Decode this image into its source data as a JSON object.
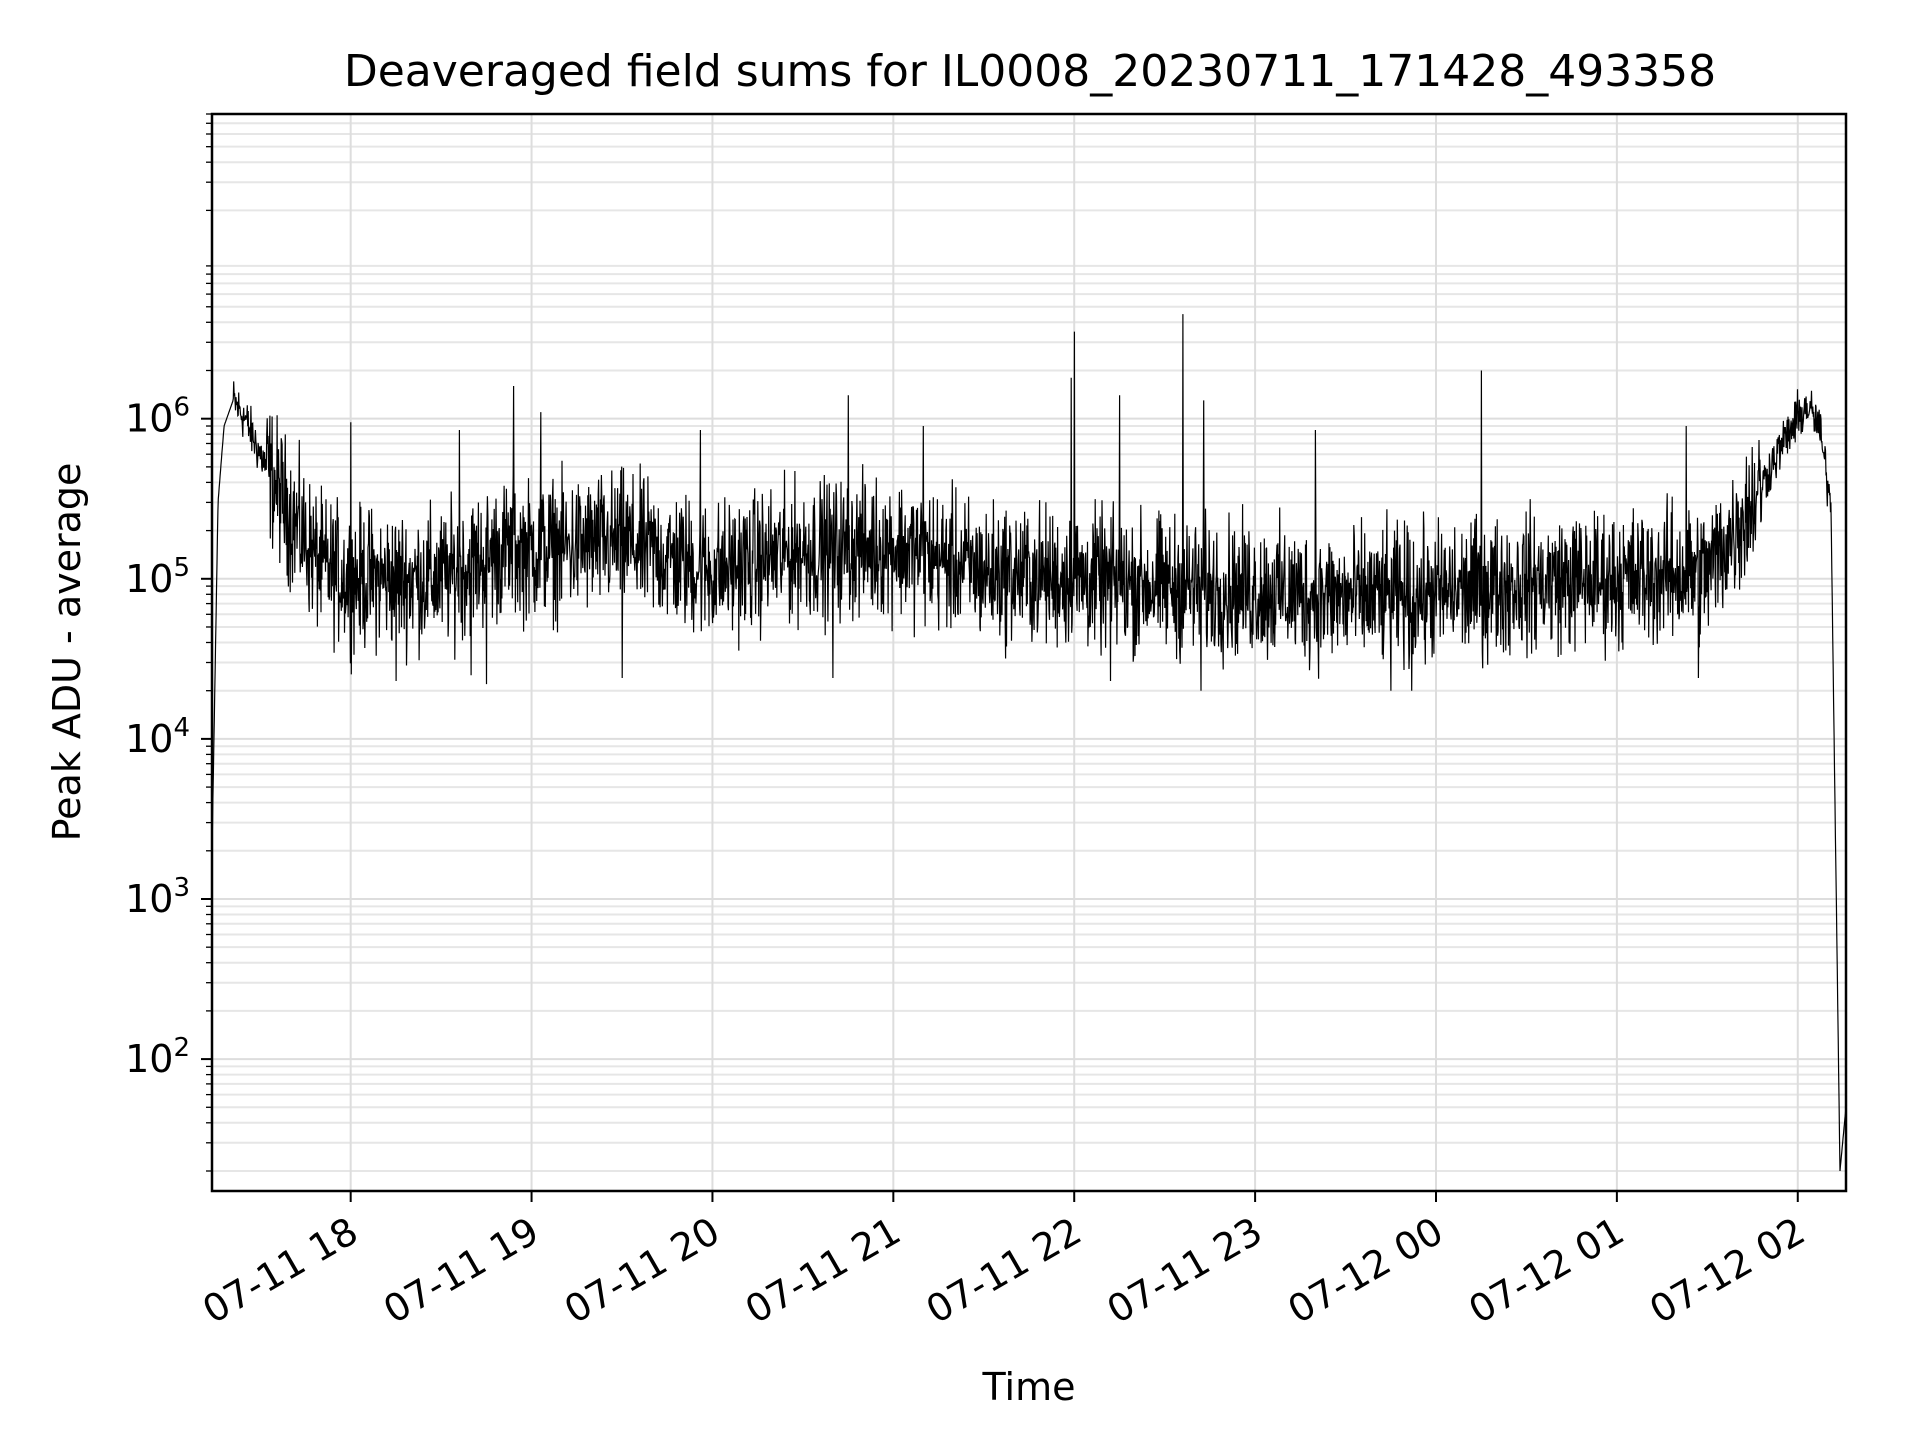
{
  "chart_data": {
    "type": "line",
    "title": "Deaveraged field sums for IL0008_20230711_171428_493358",
    "xlabel": "Time",
    "ylabel": "Peak ADU - average",
    "yscale": "log",
    "ylim": [
      15,
      80000000
    ],
    "xlim": [
      "2023-07-11 17:14",
      "2023-07-12 02:16"
    ],
    "x_ticks": [
      {
        "t": "2023-07-11 18:00",
        "label": "07-11 18"
      },
      {
        "t": "2023-07-11 19:00",
        "label": "07-11 19"
      },
      {
        "t": "2023-07-11 20:00",
        "label": "07-11 20"
      },
      {
        "t": "2023-07-11 21:00",
        "label": "07-11 21"
      },
      {
        "t": "2023-07-11 22:00",
        "label": "07-11 22"
      },
      {
        "t": "2023-07-11 23:00",
        "label": "07-11 23"
      },
      {
        "t": "2023-07-12 00:00",
        "label": "07-12 00"
      },
      {
        "t": "2023-07-12 01:00",
        "label": "07-12 01"
      },
      {
        "t": "2023-07-12 02:00",
        "label": "07-12 02"
      }
    ],
    "y_ticks": [
      {
        "value": 100,
        "base": "10",
        "exp": "2"
      },
      {
        "value": 1000,
        "base": "10",
        "exp": "3"
      },
      {
        "value": 10000,
        "base": "10",
        "exp": "4"
      },
      {
        "value": 100000,
        "base": "10",
        "exp": "5"
      },
      {
        "value": 1000000,
        "base": "10",
        "exp": "6"
      }
    ],
    "grid": "on",
    "series": [
      {
        "color": "#000000",
        "x": [
          "2023-07-11 17:14",
          "2023-07-11 17:16",
          "2023-07-11 17:18",
          "2023-07-11 17:21",
          "2023-07-11 17:25",
          "2023-07-11 17:30",
          "2023-07-11 17:40",
          "2023-07-11 17:50",
          "2023-07-11 18:00",
          "2023-07-11 18:30",
          "2023-07-11 18:50",
          "2023-07-11 19:00",
          "2023-07-11 19:30",
          "2023-07-11 20:00",
          "2023-07-11 20:30",
          "2023-07-11 21:00",
          "2023-07-11 21:30",
          "2023-07-11 22:00",
          "2023-07-11 22:30",
          "2023-07-11 23:00",
          "2023-07-11 23:30",
          "2023-07-12 00:00",
          "2023-07-12 00:30",
          "2023-07-12 01:00",
          "2023-07-12 01:30",
          "2023-07-12 01:45",
          "2023-07-12 01:55",
          "2023-07-12 02:00",
          "2023-07-12 02:03",
          "2023-07-12 02:07",
          "2023-07-12 02:11",
          "2023-07-12 02:14",
          "2023-07-12 02:16"
        ],
        "y": [
          2000,
          300000,
          900000,
          1300000,
          1000000,
          600000,
          250000,
          120000,
          100000,
          100000,
          150000,
          150000,
          170000,
          110000,
          150000,
          160000,
          110000,
          100000,
          90000,
          85000,
          75000,
          80000,
          95000,
          100000,
          110000,
          300000,
          700000,
          1000000,
          1200000,
          900000,
          300000,
          20,
          50
        ]
      }
    ],
    "spikes": [
      {
        "x": "2023-07-11 18:54",
        "y": 1600000
      },
      {
        "x": "2023-07-11 21:59",
        "y": 1800000
      },
      {
        "x": "2023-07-11 22:00",
        "y": 3500000
      },
      {
        "x": "2023-07-11 22:36",
        "y": 4500000
      },
      {
        "x": "2023-07-12 00:15",
        "y": 2000000
      },
      {
        "x": "2023-07-11 20:45",
        "y": 1400000
      },
      {
        "x": "2023-07-11 22:15",
        "y": 1400000
      },
      {
        "x": "2023-07-11 22:43",
        "y": 1300000
      },
      {
        "x": "2023-07-11 19:03",
        "y": 1100000
      },
      {
        "x": "2023-07-11 18:00",
        "y": 950000
      },
      {
        "x": "2023-07-11 18:36",
        "y": 850000
      },
      {
        "x": "2023-07-11 19:56",
        "y": 850000
      },
      {
        "x": "2023-07-11 21:10",
        "y": 900000
      },
      {
        "x": "2023-07-11 23:20",
        "y": 850000
      },
      {
        "x": "2023-07-12 01:23",
        "y": 900000
      }
    ],
    "dips": [
      {
        "x": "2023-07-11 18:40",
        "y": 25000
      },
      {
        "x": "2023-07-11 18:45",
        "y": 22000
      },
      {
        "x": "2023-07-11 18:15",
        "y": 23000
      },
      {
        "x": "2023-07-11 19:30",
        "y": 24000
      },
      {
        "x": "2023-07-11 20:40",
        "y": 24000
      },
      {
        "x": "2023-07-11 22:12",
        "y": 23000
      },
      {
        "x": "2023-07-11 22:42",
        "y": 20000
      },
      {
        "x": "2023-07-11 23:45",
        "y": 20000
      },
      {
        "x": "2023-07-11 23:52",
        "y": 20000
      },
      {
        "x": "2023-07-12 01:27",
        "y": 24000
      }
    ]
  }
}
